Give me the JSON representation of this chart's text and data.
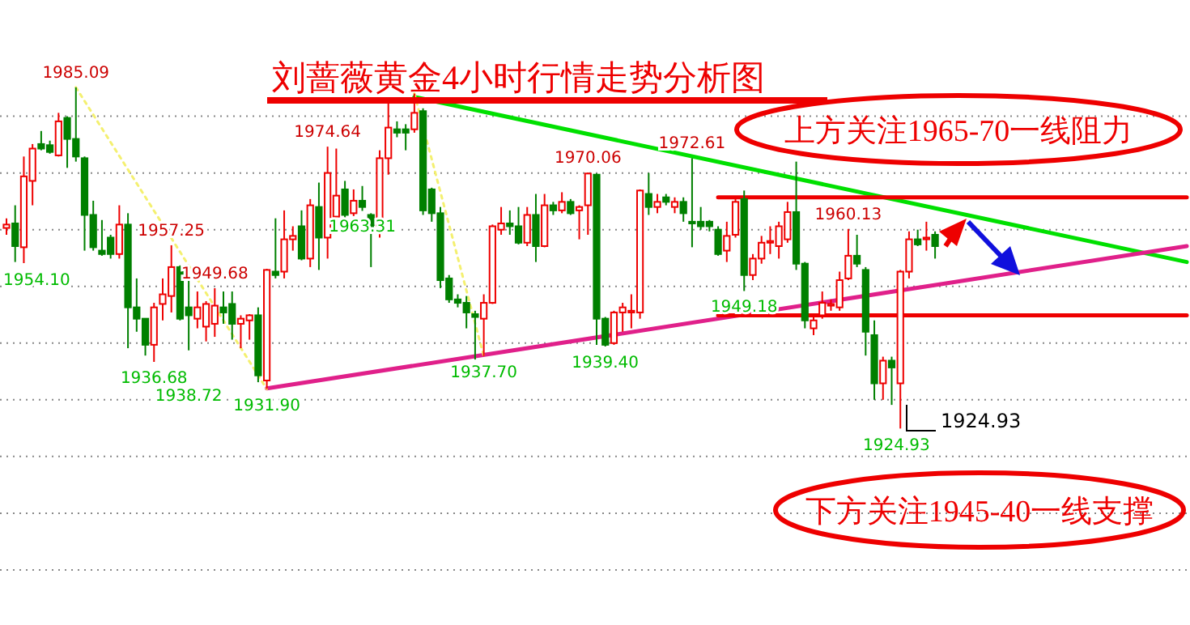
{
  "chart_data": {
    "type": "candlestick",
    "title": "刘蔷薇黄金4小时行情走势分析图",
    "categories": [
      null,
      null,
      null,
      null,
      null,
      null,
      null,
      null,
      null,
      null,
      null,
      null,
      null,
      null,
      null,
      null,
      null,
      null,
      null,
      null,
      null,
      null,
      null,
      null,
      null,
      null,
      null,
      null,
      null,
      null,
      null,
      null,
      null,
      null,
      null,
      null,
      null,
      null,
      null,
      null,
      null,
      null,
      null,
      null,
      null,
      null,
      null,
      null,
      null,
      null,
      null,
      null,
      null,
      null,
      null,
      null,
      null,
      null,
      null,
      null,
      null,
      null,
      null,
      null,
      null,
      null,
      null,
      null,
      null,
      null,
      null,
      null,
      null,
      null,
      null,
      null,
      null,
      null,
      null,
      null,
      null,
      null,
      null,
      null,
      null,
      null,
      null,
      null,
      null,
      null,
      null,
      null,
      null,
      null,
      null,
      null,
      null,
      null,
      null,
      null,
      null,
      null,
      null,
      null,
      null,
      null,
      null,
      null,
      null,
      null,
      null,
      null,
      null,
      null,
      null,
      null,
      null,
      null,
      null,
      null,
      null,
      null,
      null,
      null,
      null,
      null,
      null,
      null,
      null,
      null,
      null,
      null,
      null,
      null,
      null,
      null,
      null
    ],
    "ohlc": [
      [
        1960.3,
        1962.0,
        1959.1,
        1960.9
      ],
      [
        1961.1,
        1964.3,
        1954.3,
        1957.1
      ],
      [
        1956.9,
        1972.9,
        1954.1,
        1969.4
      ],
      [
        1968.6,
        1975.1,
        1964.3,
        1974.3
      ],
      [
        1975.1,
        1977.4,
        1974.0,
        1974.3
      ],
      [
        1974.9,
        1975.7,
        1973.4,
        1973.7
      ],
      [
        1973.1,
        1980.6,
        1972.9,
        1979.1
      ],
      [
        1979.7,
        1980.0,
        1970.9,
        1976.0
      ],
      [
        1976.0,
        1985.09,
        1972.0,
        1972.9
      ],
      [
        1972.6,
        1972.9,
        1956.3,
        1962.6
      ],
      [
        1962.6,
        1965.1,
        1956.3,
        1956.9
      ],
      [
        1956.3,
        1961.7,
        1955.4,
        1955.7
      ],
      [
        1958.6,
        1959.1,
        1954.9,
        1955.7
      ],
      [
        1955.7,
        1964.3,
        1954.9,
        1960.9
      ],
      [
        1960.9,
        1962.9,
        1939.1,
        1946.3
      ],
      [
        1946.3,
        1951.4,
        1942.0,
        1944.3
      ],
      [
        1944.3,
        1944.3,
        1937.8,
        1939.7
      ],
      [
        1939.7,
        1947.1,
        1936.68,
        1946.3
      ],
      [
        1946.9,
        1951.4,
        1944.0,
        1948.6
      ],
      [
        1948.3,
        1957.25,
        1945.4,
        1953.4
      ],
      [
        1953.4,
        1953.7,
        1944.0,
        1944.3
      ],
      [
        1946.3,
        1951.7,
        1938.72,
        1944.9
      ],
      [
        1944.3,
        1949.1,
        1942.6,
        1946.3
      ],
      [
        1942.9,
        1947.4,
        1940.3,
        1946.9
      ],
      [
        1943.4,
        1949.68,
        1941.1,
        1946.6
      ],
      [
        1946.3,
        1949.1,
        1943.4,
        1945.4
      ],
      [
        1946.9,
        1949.1,
        1940.6,
        1943.4
      ],
      [
        1943.4,
        1944.9,
        1939.1,
        1944.3
      ],
      [
        1944.0,
        1945.1,
        1940.6,
        1944.9
      ],
      [
        1944.9,
        1946.3,
        1933.1,
        1934.3
      ],
      [
        1933.4,
        1953.1,
        1931.9,
        1952.9
      ],
      [
        1952.6,
        1962.0,
        1951.4,
        1952.0
      ],
      [
        1952.6,
        1963.4,
        1951.4,
        1958.3
      ],
      [
        1958.3,
        1960.6,
        1956.3,
        1958.9
      ],
      [
        1960.6,
        1963.4,
        1954.6,
        1954.9
      ],
      [
        1954.9,
        1965.4,
        1953.4,
        1964.3
      ],
      [
        1964.0,
        1968.3,
        1952.9,
        1958.6
      ],
      [
        1958.6,
        1974.64,
        1954.9,
        1970.0
      ],
      [
        1962.3,
        1974.3,
        1961.4,
        1966.0
      ],
      [
        1967.1,
        1968.6,
        1961.4,
        1962.6
      ],
      [
        1962.9,
        1967.1,
        1962.4,
        1965.1
      ],
      [
        1965.1,
        1967.7,
        1963.31,
        1964.0
      ],
      [
        1962.6,
        1962.9,
        1953.4,
        1959.7
      ],
      [
        1959.7,
        1974.0,
        1958.6,
        1972.6
      ],
      [
        1972.6,
        1982.6,
        1969.7,
        1978.0
      ],
      [
        1977.7,
        1979.1,
        1976.3,
        1977.1
      ],
      [
        1977.7,
        1978.6,
        1974.0,
        1977.1
      ],
      [
        1977.7,
        1984.0,
        1977.1,
        1980.6
      ],
      [
        1980.9,
        1981.4,
        1962.6,
        1963.4
      ],
      [
        1967.1,
        1967.4,
        1961.4,
        1962.9
      ],
      [
        1962.9,
        1964.0,
        1949.7,
        1951.1
      ],
      [
        1951.4,
        1952.0,
        1947.1,
        1947.7
      ],
      [
        1947.7,
        1948.6,
        1946.3,
        1947.1
      ],
      [
        1947.1,
        1948.3,
        1942.6,
        1945.4
      ],
      [
        1945.1,
        1945.7,
        1937.1,
        1944.6
      ],
      [
        1944.3,
        1948.6,
        1937.7,
        1947.1
      ],
      [
        1947.1,
        1960.9,
        1946.9,
        1960.6
      ],
      [
        1960.0,
        1964.0,
        1959.1,
        1961.1
      ],
      [
        1961.1,
        1963.4,
        1959.1,
        1960.6
      ],
      [
        1960.6,
        1964.0,
        1957.4,
        1957.7
      ],
      [
        1957.7,
        1964.0,
        1957.1,
        1962.6
      ],
      [
        1962.6,
        1966.3,
        1954.3,
        1957.1
      ],
      [
        1957.1,
        1966.3,
        1956.9,
        1964.3
      ],
      [
        1964.3,
        1964.9,
        1962.6,
        1963.4
      ],
      [
        1963.4,
        1966.6,
        1962.9,
        1964.9
      ],
      [
        1964.9,
        1965.4,
        1962.6,
        1962.9
      ],
      [
        1963.4,
        1964.3,
        1958.3,
        1964.0
      ],
      [
        1964.3,
        1970.06,
        1959.1,
        1969.9
      ],
      [
        1969.7,
        1969.9,
        1939.7,
        1944.3
      ],
      [
        1944.3,
        1944.6,
        1939.4,
        1939.7
      ],
      [
        1940.0,
        1945.7,
        1939.7,
        1945.4
      ],
      [
        1945.4,
        1947.1,
        1942.0,
        1946.3
      ],
      [
        1945.4,
        1948.6,
        1942.6,
        1945.7
      ],
      [
        1945.4,
        1967.1,
        1944.3,
        1966.9
      ],
      [
        1966.3,
        1970.0,
        1962.6,
        1964.0
      ],
      [
        1964.0,
        1966.3,
        1962.9,
        1964.9
      ],
      [
        1965.7,
        1966.3,
        1964.3,
        1964.9
      ],
      [
        1964.0,
        1965.7,
        1962.9,
        1964.9
      ],
      [
        1964.9,
        1965.7,
        1961.4,
        1962.9
      ],
      [
        1961.4,
        1972.61,
        1956.9,
        1961.1
      ],
      [
        1961.4,
        1964.0,
        1960.0,
        1960.6
      ],
      [
        1961.4,
        1961.7,
        1959.7,
        1960.6
      ],
      [
        1960.0,
        1960.6,
        1955.4,
        1955.7
      ],
      [
        1956.3,
        1961.4,
        1954.3,
        1958.9
      ],
      [
        1959.1,
        1965.4,
        1958.6,
        1964.9
      ],
      [
        1965.4,
        1966.9,
        1949.18,
        1952.0
      ],
      [
        1952.0,
        1955.7,
        1951.1,
        1954.9
      ],
      [
        1954.9,
        1958.9,
        1954.0,
        1957.7
      ],
      [
        1957.7,
        1960.6,
        1955.7,
        1958.0
      ],
      [
        1957.1,
        1961.4,
        1954.9,
        1960.6
      ],
      [
        1958.3,
        1964.9,
        1957.7,
        1963.1
      ],
      [
        1963.1,
        1972.0,
        1952.9,
        1954.0
      ],
      [
        1954.0,
        1954.3,
        1942.6,
        1944.0
      ],
      [
        1942.6,
        1944.6,
        1941.4,
        1944.0
      ],
      [
        1944.9,
        1949.1,
        1944.3,
        1947.1
      ],
      [
        1946.6,
        1947.7,
        1945.7,
        1946.9
      ],
      [
        1946.3,
        1952.6,
        1945.7,
        1951.1
      ],
      [
        1951.4,
        1960.13,
        1951.1,
        1955.4
      ],
      [
        1955.4,
        1959.1,
        1953.4,
        1954.0
      ],
      [
        1952.9,
        1953.4,
        1937.8,
        1942.0
      ],
      [
        1941.4,
        1944.0,
        1930.0,
        1932.9
      ],
      [
        1932.9,
        1937.6,
        1930.0,
        1936.9
      ],
      [
        1936.9,
        1937.6,
        1929.1,
        1935.7
      ],
      [
        1932.9,
        1952.9,
        1924.93,
        1952.6
      ],
      [
        1952.6,
        1959.7,
        1951.4,
        1958.3
      ],
      [
        1958.3,
        1960.0,
        1957.1,
        1957.4
      ],
      [
        1958.3,
        1961.4,
        1956.3,
        1958.6
      ],
      [
        1959.1,
        1959.7,
        1954.9,
        1957.1
      ],
      null,
      null,
      null,
      null,
      null,
      null,
      null,
      null,
      null,
      null,
      null,
      null,
      null,
      null,
      null,
      null,
      null,
      null,
      null,
      null,
      null,
      null,
      null,
      null,
      null,
      null,
      null,
      null,
      null
    ],
    "series": [
      {
        "type": "line",
        "color": "#00e000",
        "values": [
          null,
          null,
          null,
          null,
          null,
          null,
          null,
          null,
          null,
          null,
          null,
          null,
          null,
          null,
          null,
          null,
          null,
          null,
          null,
          null,
          null,
          null,
          null,
          null,
          null,
          null,
          null,
          null,
          null,
          null,
          null,
          null,
          null,
          null,
          null,
          null,
          null,
          null,
          null,
          null,
          null,
          null,
          null,
          null,
          null,
          null,
          null,
          1983.4,
          null,
          null,
          null,
          null,
          null,
          null,
          null,
          null,
          null,
          null,
          null,
          null,
          null,
          null,
          null,
          null,
          null,
          null,
          null,
          null,
          null,
          null,
          null,
          null,
          null,
          null,
          null,
          null,
          null,
          null,
          null,
          null,
          null,
          null,
          null,
          null,
          null,
          null,
          null,
          null,
          null,
          null,
          null,
          null,
          null,
          null,
          null,
          null,
          null,
          null,
          null,
          null,
          null,
          null,
          null,
          null,
          null,
          null,
          null,
          null,
          null,
          null,
          null,
          null,
          null,
          null,
          null,
          null,
          null,
          null,
          null,
          null,
          null,
          null,
          null,
          null,
          null,
          null,
          null,
          null,
          null,
          null,
          null,
          null,
          null,
          null,
          null,
          null,
          1954.3
        ]
      },
      {
        "type": "line",
        "color": "#e0208a",
        "values": [
          null,
          null,
          null,
          null,
          null,
          null,
          null,
          null,
          null,
          null,
          null,
          null,
          null,
          null,
          null,
          null,
          null,
          null,
          null,
          null,
          null,
          null,
          null,
          null,
          null,
          null,
          null,
          null,
          null,
          null,
          1932.0,
          null,
          null,
          null,
          null,
          null,
          null,
          null,
          null,
          null,
          null,
          null,
          null,
          null,
          null,
          null,
          null,
          null,
          null,
          null,
          null,
          null,
          null,
          null,
          null,
          null,
          null,
          null,
          null,
          null,
          null,
          null,
          null,
          null,
          null,
          null,
          null,
          null,
          null,
          null,
          null,
          null,
          null,
          null,
          null,
          null,
          null,
          null,
          null,
          null,
          null,
          null,
          null,
          null,
          null,
          null,
          null,
          null,
          null,
          null,
          null,
          null,
          null,
          null,
          null,
          null,
          null,
          null,
          null,
          null,
          null,
          null,
          null,
          null,
          null,
          null,
          null,
          null,
          null,
          null,
          null,
          null,
          null,
          null,
          null,
          null,
          null,
          null,
          null,
          null,
          null,
          null,
          null,
          null,
          null,
          null,
          null,
          null,
          null,
          null,
          null,
          null,
          null,
          null,
          null,
          null,
          1957.1
        ]
      },
      {
        "type": "line",
        "color": "#f4f070",
        "line_style": "dotted",
        "values": [
          null,
          null,
          null,
          null,
          null,
          null,
          null,
          null,
          1985.1,
          null,
          null,
          null,
          null,
          null,
          null,
          null,
          null,
          null,
          null,
          null,
          null,
          null,
          null,
          null,
          null,
          null,
          null,
          null,
          null,
          null,
          1931.9,
          null,
          null,
          null,
          null,
          null,
          null,
          null,
          null,
          null,
          null,
          null,
          null,
          null,
          null,
          null,
          null,
          null,
          null,
          null,
          null,
          null,
          null,
          null,
          null,
          null,
          null,
          null,
          null,
          null,
          null,
          null,
          null,
          null,
          null,
          null,
          null,
          null,
          null,
          null,
          null,
          null,
          null,
          null,
          null,
          null,
          null,
          null,
          null,
          null,
          null,
          null,
          null,
          null,
          null,
          null,
          null,
          null,
          null,
          null,
          null,
          null,
          null,
          null,
          null,
          null,
          null,
          null,
          null,
          null,
          null,
          null,
          null,
          null,
          null,
          null,
          null,
          null,
          null,
          null,
          null,
          null,
          null,
          null,
          null,
          null,
          null,
          null,
          null,
          null,
          null,
          null,
          null,
          null,
          null,
          null,
          null,
          null,
          null,
          null,
          null,
          null,
          null,
          null,
          null,
          null,
          null
        ]
      },
      {
        "type": "line",
        "color": "#f4f070",
        "line_style": "dotted",
        "values": [
          null,
          null,
          null,
          null,
          null,
          null,
          null,
          null,
          null,
          null,
          null,
          null,
          null,
          null,
          null,
          null,
          null,
          null,
          null,
          null,
          null,
          null,
          null,
          null,
          null,
          null,
          null,
          null,
          null,
          null,
          null,
          null,
          null,
          null,
          null,
          null,
          null,
          null,
          null,
          null,
          null,
          null,
          null,
          null,
          null,
          null,
          null,
          1984.0,
          null,
          null,
          null,
          null,
          null,
          null,
          null,
          1937.7,
          null,
          null,
          null,
          null,
          null,
          null,
          null,
          null,
          null,
          null,
          null,
          null,
          null,
          null,
          null,
          null,
          null,
          null,
          null,
          null,
          null,
          null,
          null,
          null,
          null,
          null,
          null,
          null,
          null,
          null,
          null,
          null,
          null,
          null,
          null,
          null,
          null,
          null,
          null,
          null,
          null,
          null,
          null,
          null,
          null,
          null,
          null,
          null,
          null,
          null,
          null,
          null,
          null,
          null,
          null,
          null,
          null,
          null,
          null,
          null,
          null,
          null,
          null,
          null,
          null,
          null,
          null,
          null,
          null,
          null,
          null,
          null,
          null,
          null,
          null,
          null,
          null,
          null,
          null,
          null,
          null
        ]
      },
      {
        "type": "line",
        "color": "#ee0000",
        "values": [
          null,
          null,
          null,
          null,
          null,
          null,
          null,
          null,
          null,
          null,
          null,
          null,
          null,
          null,
          null,
          null,
          null,
          null,
          null,
          null,
          null,
          null,
          null,
          null,
          null,
          null,
          null,
          null,
          null,
          null,
          null,
          null,
          null,
          null,
          null,
          null,
          null,
          null,
          null,
          null,
          null,
          null,
          null,
          null,
          null,
          null,
          null,
          null,
          null,
          null,
          null,
          null,
          null,
          null,
          null,
          null,
          null,
          null,
          null,
          null,
          null,
          null,
          null,
          null,
          null,
          null,
          null,
          null,
          null,
          null,
          null,
          null,
          null,
          null,
          null,
          null,
          null,
          null,
          null,
          null,
          null,
          null,
          1965.7,
          null,
          null,
          null,
          null,
          null,
          null,
          null,
          null,
          null,
          null,
          null,
          null,
          null,
          null,
          null,
          null,
          null,
          null,
          null,
          null,
          null,
          null,
          null,
          null,
          null,
          null,
          null,
          null,
          null,
          null,
          null,
          null,
          null,
          null,
          null,
          null,
          null,
          null,
          null,
          null,
          null,
          null,
          null,
          null,
          null,
          null,
          null,
          null,
          null,
          null,
          null,
          null,
          null,
          1965.7
        ]
      },
      {
        "type": "line",
        "color": "#ee0000",
        "values": [
          null,
          null,
          null,
          null,
          null,
          null,
          null,
          null,
          null,
          null,
          null,
          null,
          null,
          null,
          null,
          null,
          null,
          null,
          null,
          null,
          null,
          null,
          null,
          null,
          null,
          null,
          null,
          null,
          null,
          null,
          null,
          null,
          null,
          null,
          null,
          null,
          null,
          null,
          null,
          null,
          null,
          null,
          null,
          null,
          null,
          null,
          null,
          null,
          null,
          null,
          null,
          null,
          null,
          null,
          null,
          null,
          null,
          null,
          null,
          null,
          null,
          null,
          null,
          null,
          null,
          null,
          null,
          null,
          null,
          null,
          null,
          null,
          null,
          null,
          null,
          null,
          null,
          null,
          null,
          null,
          null,
          null,
          1944.9,
          null,
          null,
          null,
          null,
          null,
          null,
          null,
          null,
          null,
          null,
          null,
          null,
          null,
          null,
          null,
          null,
          null,
          null,
          null,
          null,
          null,
          null,
          null,
          null,
          null,
          null,
          null,
          null,
          null,
          null,
          null,
          null,
          null,
          null,
          null,
          null,
          null,
          null,
          null,
          null,
          null,
          null,
          null,
          null,
          null,
          null,
          null,
          null,
          null,
          null,
          null,
          null,
          null,
          1944.9
        ]
      }
    ],
    "annotations": [
      "上方关注1965-70一线阻力",
      "下方关注1945-40一线支撑",
      "1954.10",
      "1924.93",
      "1924.93",
      {
        "text": "1985.09",
        "y": 1985.09
      },
      {
        "text": "1936.68",
        "y": 1936.68
      },
      {
        "text": "1957.25",
        "y": 1957.25
      },
      {
        "text": "1938.72",
        "y": 1938.72
      },
      {
        "text": "1949.68",
        "y": 1949.68
      },
      {
        "text": "1931.90",
        "y": 1931.9
      },
      {
        "text": "1974.64",
        "y": 1974.64
      },
      {
        "text": "1963.31",
        "y": 1963.31
      },
      {
        "text": "1937.70",
        "y": 1937.7
      },
      {
        "text": "1970.06",
        "y": 1970.06
      },
      {
        "text": "1939.40",
        "y": 1939.4
      },
      {
        "text": "1972.61",
        "y": 1972.61
      },
      {
        "text": "1949.18",
        "y": 1949.18
      },
      {
        "text": "1960.13",
        "y": 1960.13
      }
    ],
    "ylim": [
      1890,
      2000.5
    ],
    "yticks": [
      {
        "value": 1900,
        "label": null
      },
      {
        "value": 1910,
        "label": null
      },
      {
        "value": 1920,
        "label": null
      },
      {
        "value": 1930,
        "label": null
      },
      {
        "value": 1940,
        "label": null
      },
      {
        "value": 1950,
        "label": null
      },
      {
        "value": 1960,
        "label": null
      },
      {
        "value": 1970,
        "label": null
      },
      {
        "value": 1980,
        "label": null
      }
    ],
    "grid": "y",
    "tick_labels": false
  }
}
